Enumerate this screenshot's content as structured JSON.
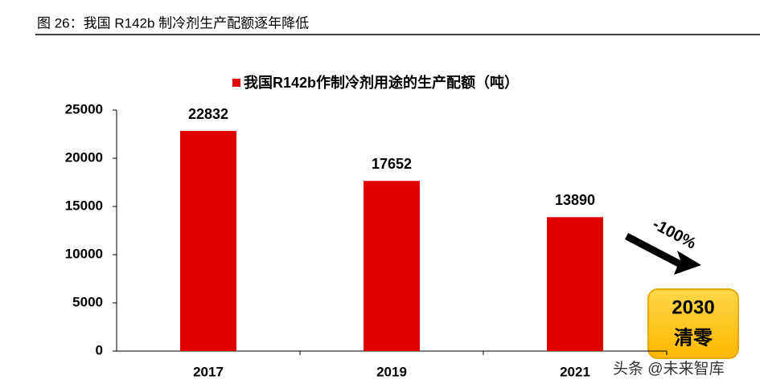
{
  "chart_data": {
    "type": "bar",
    "title": "图 26：我国 R142b 制冷剂生产配额逐年降低",
    "categories": [
      "2017",
      "2019",
      "2021"
    ],
    "series": [
      {
        "name": "我国R142b作制冷剂用途的生产配额（吨）",
        "color": "#e00000",
        "values": [
          22832,
          17652,
          13890
        ]
      }
    ],
    "ylim": [
      0,
      25000
    ],
    "yticks": [
      0,
      5000,
      10000,
      15000,
      20000,
      25000
    ],
    "annotations": [
      "-100%",
      "2030",
      "清零"
    ],
    "watermark": "头条 @未来智库"
  }
}
